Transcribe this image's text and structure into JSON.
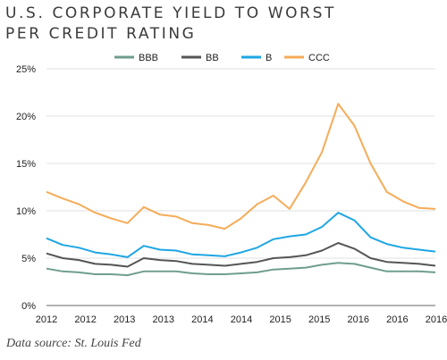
{
  "title_lines": [
    "U.S. CORPORATE YIELD TO WORST",
    "PER CREDIT RATING"
  ],
  "source": "Data source: St. Louis Fed",
  "chart_data": {
    "type": "line",
    "title": "U.S. CORPORATE YIELD TO WORST PER CREDIT RATING",
    "x_tick_labels": [
      "2012",
      "2012",
      "2013",
      "2013",
      "2014",
      "2014",
      "2015",
      "2015",
      "2016",
      "2016",
      "2016"
    ],
    "y_tick_labels": [
      "0%",
      "5%",
      "10%",
      "15%",
      "20%",
      "25%"
    ],
    "ylim": [
      0,
      25
    ],
    "y_unit": "%",
    "x": [
      "2012-01",
      "2012-04",
      "2012-07",
      "2012-10",
      "2013-01",
      "2013-04",
      "2013-07",
      "2013-10",
      "2014-01",
      "2014-04",
      "2014-07",
      "2014-10",
      "2015-01",
      "2015-04",
      "2015-07",
      "2015-10",
      "2016-01",
      "2016-04",
      "2016-07",
      "2016-10",
      "2017-01",
      "2017-04",
      "2017-07",
      "2017-10",
      "2017-12"
    ],
    "legend_position": "top",
    "grid": "horizontal",
    "series": [
      {
        "name": "BBB",
        "color": "#6f9e8c",
        "values": [
          3.9,
          3.6,
          3.5,
          3.3,
          3.3,
          3.2,
          3.6,
          3.6,
          3.6,
          3.4,
          3.3,
          3.3,
          3.4,
          3.5,
          3.8,
          3.9,
          4.0,
          4.3,
          4.5,
          4.4,
          4.0,
          3.6,
          3.6,
          3.6,
          3.5
        ]
      },
      {
        "name": "BB",
        "color": "#555555",
        "values": [
          5.5,
          5.0,
          4.8,
          4.4,
          4.3,
          4.1,
          5.0,
          4.8,
          4.7,
          4.4,
          4.3,
          4.2,
          4.4,
          4.6,
          5.0,
          5.1,
          5.3,
          5.8,
          6.6,
          6.0,
          5.0,
          4.6,
          4.5,
          4.4,
          4.2
        ]
      },
      {
        "name": "B",
        "color": "#1ea6e4",
        "values": [
          7.1,
          6.4,
          6.1,
          5.6,
          5.4,
          5.1,
          6.3,
          5.9,
          5.8,
          5.4,
          5.3,
          5.2,
          5.6,
          6.1,
          7.0,
          7.3,
          7.5,
          8.3,
          9.8,
          9.0,
          7.2,
          6.5,
          6.1,
          5.9,
          5.7
        ]
      },
      {
        "name": "CCC",
        "color": "#f5ac58",
        "values": [
          12.0,
          11.3,
          10.7,
          9.8,
          9.2,
          8.7,
          10.4,
          9.6,
          9.4,
          8.7,
          8.5,
          8.1,
          9.2,
          10.7,
          11.6,
          10.2,
          13.0,
          16.2,
          21.3,
          19.0,
          15.0,
          12.0,
          11.0,
          10.3,
          10.2
        ]
      }
    ]
  }
}
